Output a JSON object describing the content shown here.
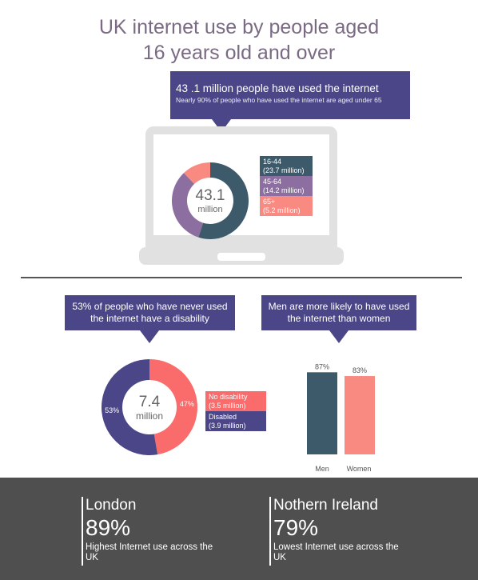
{
  "title_line1": "UK internet use by people aged",
  "title_line2": "16 years old and over",
  "top_callout": {
    "headline": "43 .1 million people have used the internet",
    "subtext": "Nearly 90% of people who have used the internet are aged under 65"
  },
  "colors": {
    "dark_blue": "#3d5a6b",
    "purple": "#8c6fa0",
    "salmon": "#f88a82",
    "coral": "#fa6b6b",
    "navy": "#4b4687",
    "grey_footer": "#4f4f4f"
  },
  "age_donut": {
    "center_value": "43.1",
    "center_unit": "million"
  },
  "disability_callout": {
    "line1": "53% of people who have never used",
    "line2": "the internet have a disability"
  },
  "gender_callout": {
    "line1": "Men are more likely to have used",
    "line2": "the internet than women"
  },
  "disability_donut": {
    "center_value": "7.4",
    "center_unit": "million"
  },
  "footer": {
    "left": {
      "region": "London",
      "percent": "89%",
      "description": "Highest Internet use across the UK"
    },
    "right": {
      "region": "Nothern Ireland",
      "percent": "79%",
      "description": "Lowest Internet use across the UK"
    }
  },
  "chart_data": [
    {
      "type": "pie",
      "labels": [
        "16-44",
        "45-64",
        "65+"
      ],
      "legend_values": [
        "(23.7 million)",
        "(14.2 million)",
        "(5.2 million)"
      ],
      "values": [
        23.7,
        14.2,
        5.2
      ],
      "colors": [
        "#3d5a6b",
        "#8c6fa0",
        "#f88a82"
      ]
    },
    {
      "type": "pie",
      "labels": [
        "No disability",
        "Disabled"
      ],
      "legend_values": [
        "(3.5 million)",
        "(3.9 million)"
      ],
      "values": [
        3.5,
        3.9
      ],
      "slice_labels": [
        "47%",
        "53%"
      ],
      "colors": [
        "#fa6b6b",
        "#4b4687"
      ]
    },
    {
      "type": "bar",
      "categories": [
        "Men",
        "Women"
      ],
      "values": [
        87,
        83
      ],
      "value_labels": [
        "87%",
        "83%"
      ],
      "colors": [
        "#3d5a6b",
        "#f88a82"
      ],
      "ylim": [
        0,
        100
      ]
    }
  ]
}
